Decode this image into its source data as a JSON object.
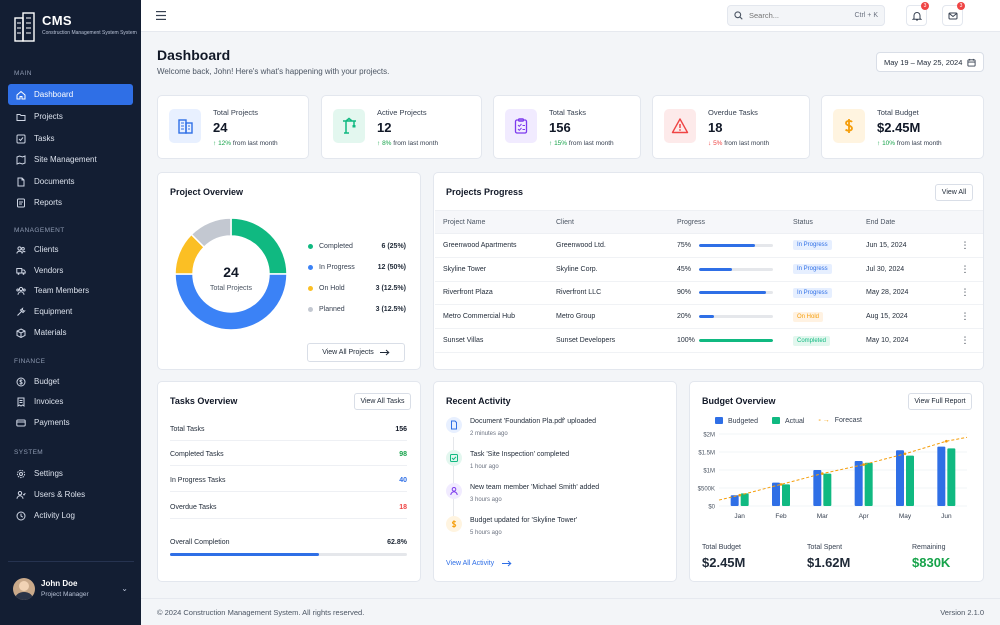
{
  "brand": {
    "title": "CMS",
    "subtitle": "Construction Management System System"
  },
  "sidebar": {
    "sections": [
      {
        "label": "MAIN",
        "items": [
          {
            "label": "Dashboard",
            "icon": "home-icon",
            "active": true
          },
          {
            "label": "Projects",
            "icon": "folder-icon"
          },
          {
            "label": "Tasks",
            "icon": "checklist-icon"
          },
          {
            "label": "Site Management",
            "icon": "map-icon"
          },
          {
            "label": "Documents",
            "icon": "document-icon"
          },
          {
            "label": "Reports",
            "icon": "report-icon"
          }
        ]
      },
      {
        "label": "MANAGEMENT",
        "items": [
          {
            "label": "Clients",
            "icon": "users-icon"
          },
          {
            "label": "Vendors",
            "icon": "truck-icon"
          },
          {
            "label": "Team Members",
            "icon": "team-icon"
          },
          {
            "label": "Equipment",
            "icon": "tools-icon"
          },
          {
            "label": "Materials",
            "icon": "box-icon"
          }
        ]
      },
      {
        "label": "FINANCE",
        "items": [
          {
            "label": "Budget",
            "icon": "budget-icon"
          },
          {
            "label": "Invoices",
            "icon": "invoice-icon"
          },
          {
            "label": "Payments",
            "icon": "card-icon"
          }
        ]
      },
      {
        "label": "SYSTEM",
        "items": [
          {
            "label": "Settings",
            "icon": "gear-icon"
          },
          {
            "label": "Users & Roles",
            "icon": "user-roles-icon"
          },
          {
            "label": "Activity Log",
            "icon": "clock-icon"
          }
        ]
      }
    ],
    "user": {
      "name": "John Doe",
      "role": "Project Manager"
    }
  },
  "topbar": {
    "search_placeholder": "Search...",
    "search_shortcut": "Ctrl + K",
    "notifications_count": "3",
    "messages_count": "3"
  },
  "header": {
    "title": "Dashboard",
    "subtitle": "Welcome back, John!  Here's what's happening with your projects.",
    "date_range": "May 19 – May 25, 2024"
  },
  "stats": [
    {
      "label": "Total Projects",
      "value": "24",
      "delta": "12%",
      "delta_dir": "up",
      "delta_suffix": "from last month",
      "icon": "building-icon",
      "color": "#2f6fe6",
      "bg": "#e8f0ff"
    },
    {
      "label": "Active Projects",
      "value": "12",
      "delta": "8%",
      "delta_dir": "up",
      "delta_suffix": "from last month",
      "icon": "crane-icon",
      "color": "#10b981",
      "bg": "#e3f7ef"
    },
    {
      "label": "Total Tasks",
      "value": "156",
      "delta": "15%",
      "delta_dir": "up",
      "delta_suffix": "from last month",
      "icon": "clipboard-icon",
      "color": "#7c3aed",
      "bg": "#f1ebff"
    },
    {
      "label": "Overdue Tasks",
      "value": "18",
      "delta": "5%",
      "delta_dir": "down",
      "delta_suffix": "from last month",
      "icon": "warning-icon",
      "color": "#ef4444",
      "bg": "#fdeaea"
    },
    {
      "label": "Total Budget",
      "value": "$2.45M",
      "delta": "10%",
      "delta_dir": "up",
      "delta_suffix": "from last month",
      "icon": "dollar-icon",
      "color": "#f59e0b",
      "bg": "#fff4e0"
    }
  ],
  "project_overview": {
    "title": "Project Overview",
    "center_value": "24",
    "center_label": "Total Projects",
    "button": "View All Projects",
    "segments": [
      {
        "label": "Completed",
        "value": "6 (25%)",
        "count": 6,
        "color": "#10b981"
      },
      {
        "label": "In Progress",
        "value": "12 (50%)",
        "count": 12,
        "color": "#3b82f6"
      },
      {
        "label": "On Hold",
        "value": "3 (12.5%)",
        "count": 3,
        "color": "#fbbf24"
      },
      {
        "label": "Planned",
        "value": "3 (12.5%)",
        "count": 3,
        "color": "#c3c8d1"
      }
    ]
  },
  "projects_progress": {
    "title": "Projects Progress",
    "button": "View All",
    "columns": [
      "Project Name",
      "Client",
      "Progress",
      "Status",
      "End Date"
    ],
    "rows": [
      {
        "name": "Greenwood Apartments",
        "client": "Greenwood Ltd.",
        "progress": "75%",
        "progress_value": 75,
        "status": "In Progress",
        "status_type": "prog",
        "end": "Jun 15, 2024"
      },
      {
        "name": "Skyline Tower",
        "client": "Skyline Corp.",
        "progress": "45%",
        "progress_value": 45,
        "status": "In Progress",
        "status_type": "prog",
        "end": "Jul 30, 2024"
      },
      {
        "name": "Riverfront Plaza",
        "client": "Riverfront LLC",
        "progress": "90%",
        "progress_value": 90,
        "status": "In Progress",
        "status_type": "prog",
        "end": "May 28, 2024"
      },
      {
        "name": "Metro Commercial Hub",
        "client": "Metro Group",
        "progress": "20%",
        "progress_value": 20,
        "status": "On Hold",
        "status_type": "hold",
        "end": "Aug 15, 2024"
      },
      {
        "name": "Sunset Villas",
        "client": "Sunset Developers",
        "progress": "100%",
        "progress_value": 100,
        "status": "Completed",
        "status_type": "done",
        "end": "May 10, 2024"
      }
    ]
  },
  "tasks_overview": {
    "title": "Tasks Overview",
    "button": "View All Tasks",
    "rows": [
      {
        "label": "Total Tasks",
        "value": "156",
        "color": "#111827"
      },
      {
        "label": "Completed Tasks",
        "value": "98",
        "color": "#16a34a"
      },
      {
        "label": "In Progress Tasks",
        "value": "40",
        "color": "#2f6fe6"
      },
      {
        "label": "Overdue Tasks",
        "value": "18",
        "color": "#ef4444"
      }
    ],
    "completion_label": "Overall Completion",
    "completion_value": "62.8%",
    "completion_fraction": 0.628
  },
  "recent_activity": {
    "title": "Recent Activity",
    "items": [
      {
        "text": "Document 'Foundation Pla.pdf' uploaded",
        "time": "2 minutes ago",
        "icon": "document-icon",
        "color": "#2f6fe6",
        "bg": "#e8f0ff"
      },
      {
        "text": "Task 'Site Inspection' completed",
        "time": "1 hour ago",
        "icon": "check-icon",
        "color": "#10b981",
        "bg": "#e3f7ef"
      },
      {
        "text": "New team member 'Michael Smith' added",
        "time": "3 hours ago",
        "icon": "user-icon",
        "color": "#7c3aed",
        "bg": "#f1ebff"
      },
      {
        "text": "Budget updated for 'Skyline Tower'",
        "time": "5 hours ago",
        "icon": "dollar-icon",
        "color": "#f59e0b",
        "bg": "#fff4e0"
      }
    ],
    "link": "View All Activity"
  },
  "budget_overview": {
    "title": "Budget Overview",
    "button": "View Full Report",
    "totals": [
      {
        "label": "Total Budget",
        "value": "$2.45M",
        "color": "#1f2937"
      },
      {
        "label": "Total Spent",
        "value": "$1.62M",
        "color": "#1f2937"
      },
      {
        "label": "Remaining",
        "value": "$830K",
        "color": "#16a34a"
      }
    ]
  },
  "chart_data": {
    "type": "bar",
    "categories": [
      "Jan",
      "Feb",
      "Mar",
      "Apr",
      "May",
      "Jun"
    ],
    "series": [
      {
        "name": "Budgeted",
        "values": [
          0.3,
          0.65,
          1.0,
          1.25,
          1.55,
          1.65
        ],
        "color": "#2f6fe6"
      },
      {
        "name": "Actual",
        "values": [
          0.35,
          0.6,
          0.9,
          1.2,
          1.4,
          1.6
        ],
        "color": "#10b981"
      },
      {
        "name": "Forecast",
        "values": [
          0.3,
          0.6,
          0.9,
          1.15,
          1.45,
          1.8
        ],
        "color": "#f59e0b"
      }
    ],
    "yticks": [
      "$0",
      "$500K",
      "$1M",
      "$1.5M",
      "$2M"
    ],
    "ylim": [
      0,
      2
    ],
    "grid": true,
    "legend": "top"
  },
  "footer": {
    "copyright": "© 2024 Construction Management System. All rights reserved.",
    "version": "Version 2.1.0"
  }
}
